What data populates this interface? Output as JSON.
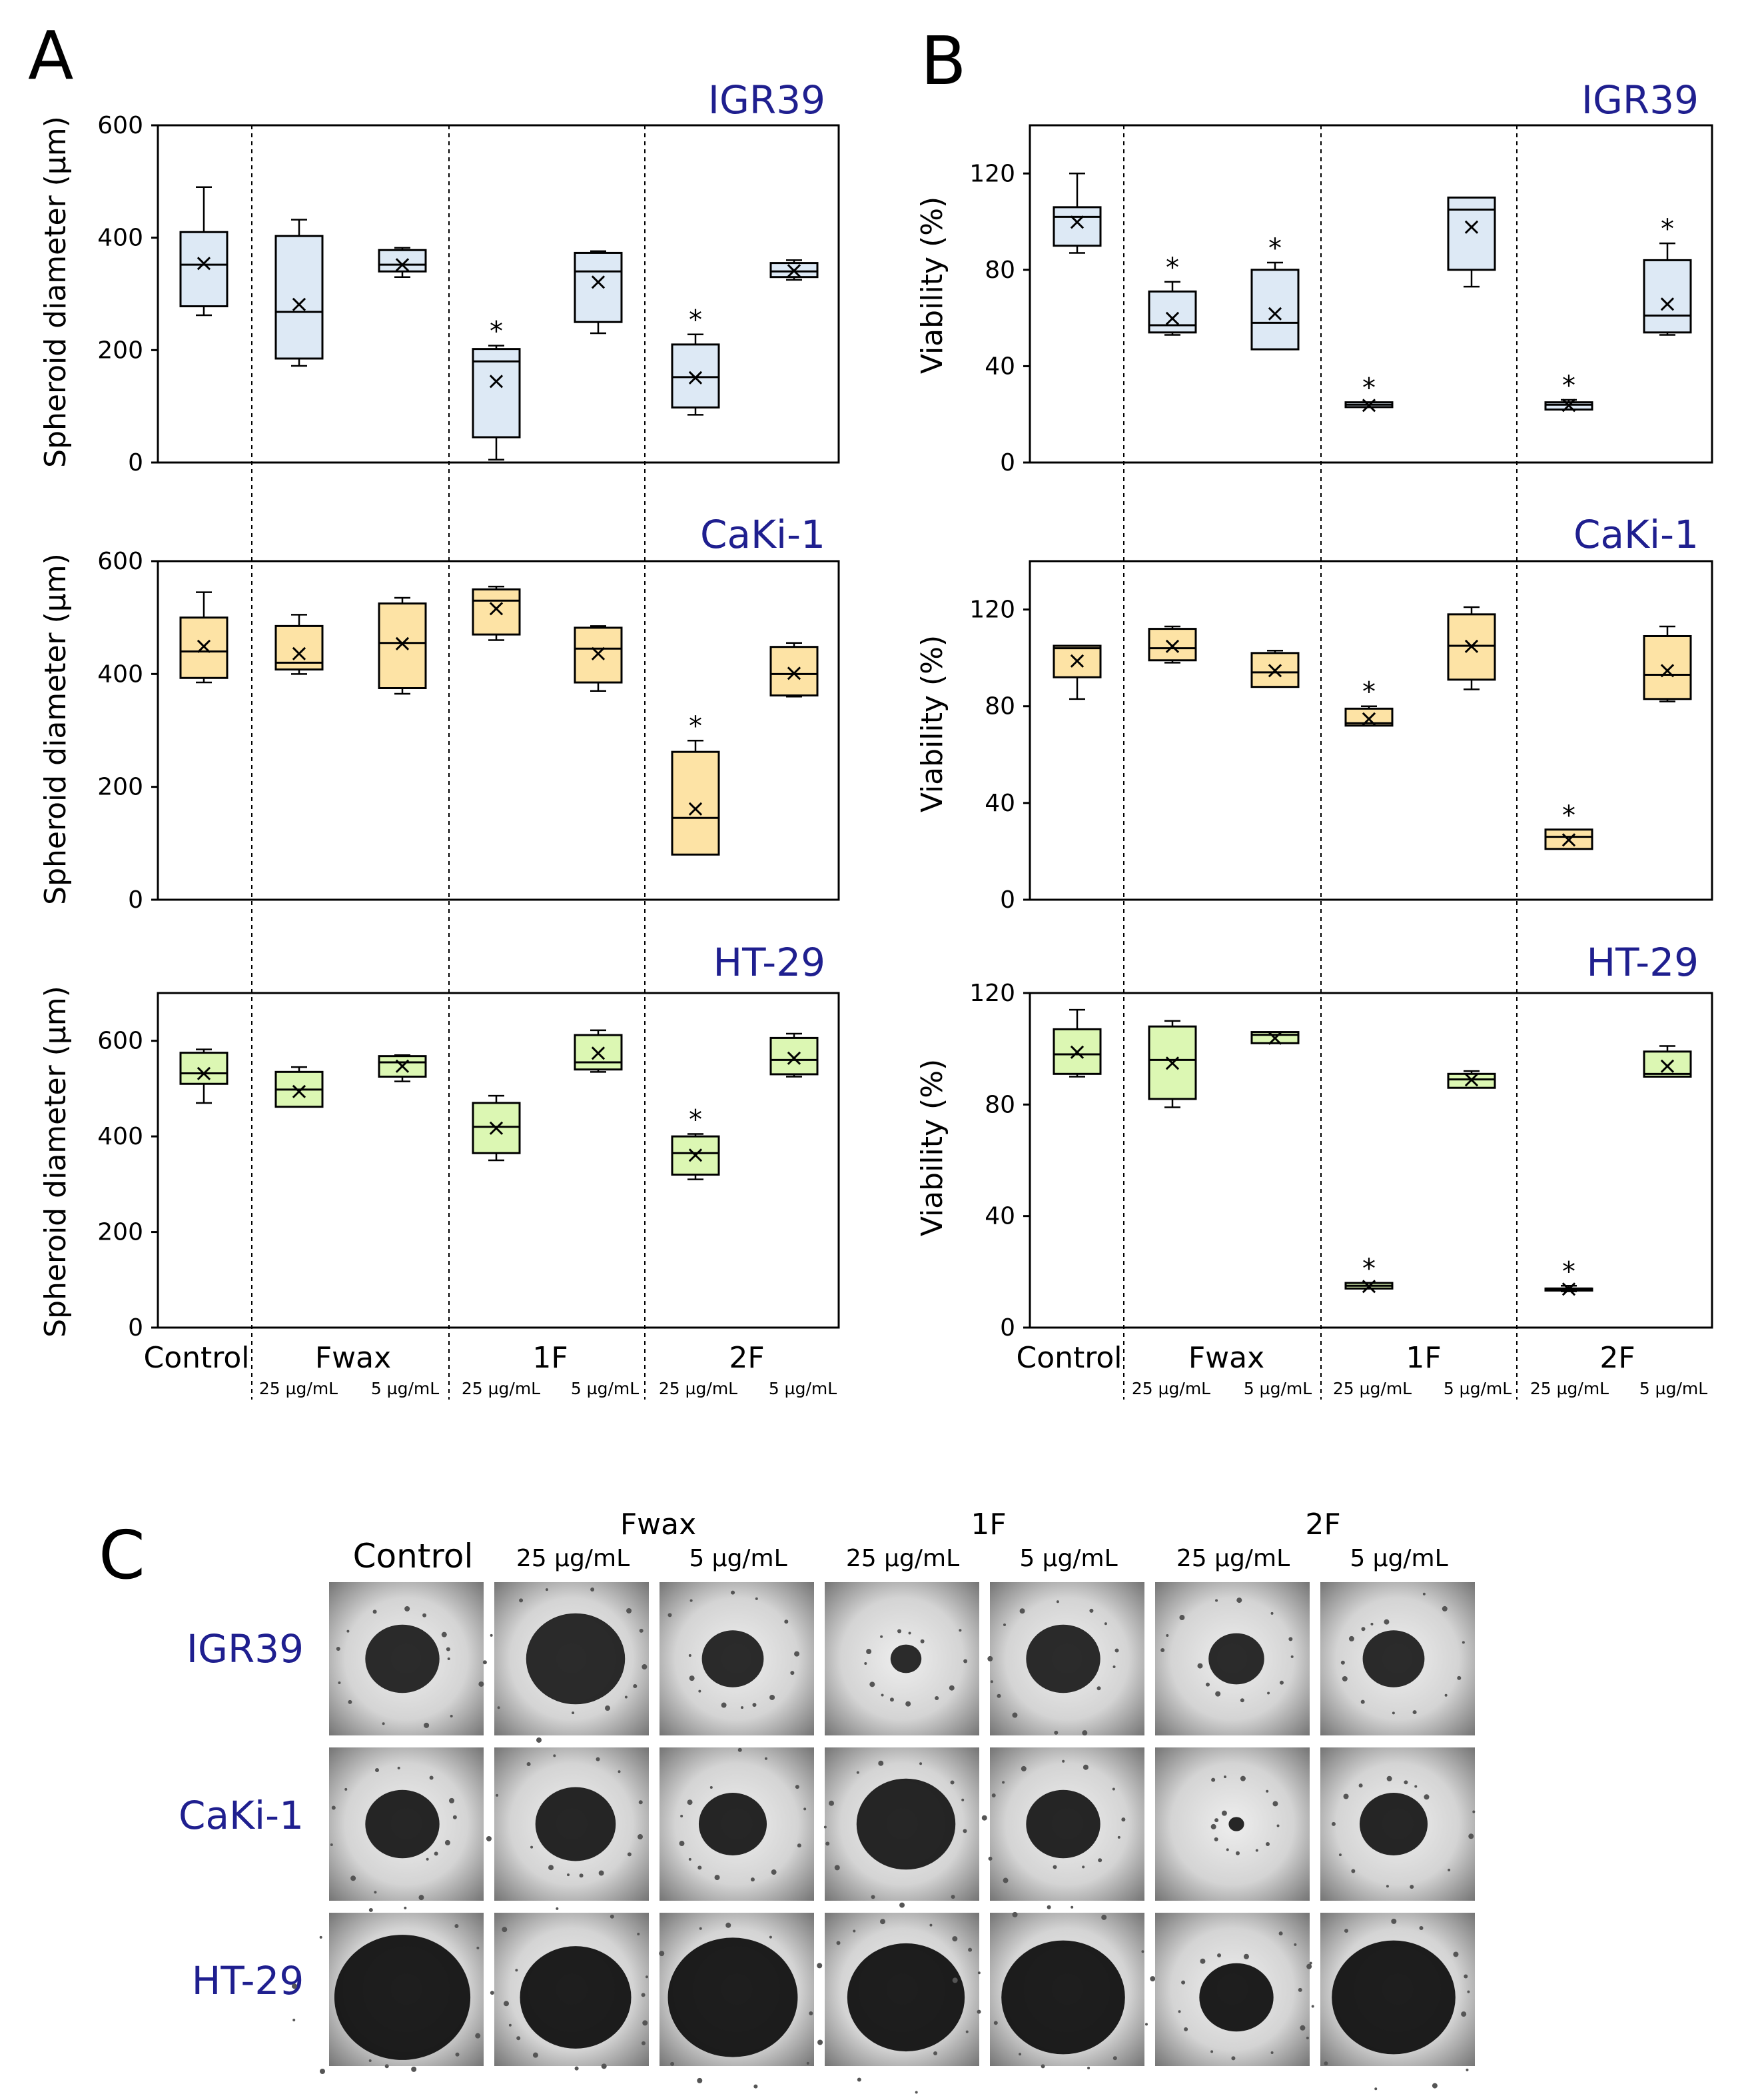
{
  "panels": {
    "A": {
      "letter": "A",
      "ylabel": "Spheroid diameter (µm)",
      "cells": [
        {
          "title": "IGR39",
          "fill": "#dde9f5",
          "ylim": [
            0,
            600
          ],
          "yticks": [
            "0",
            "200",
            "400",
            "600"
          ],
          "ytick_values": [
            0,
            200,
            400,
            600
          ],
          "boxes": [
            {
              "min": 262,
              "q1": 278,
              "median": 352,
              "q3": 410,
              "max": 490,
              "mean": 355,
              "sig": false
            },
            {
              "min": 172,
              "q1": 185,
              "median": 268,
              "q3": 403,
              "max": 432,
              "mean": 282,
              "sig": false
            },
            {
              "min": 330,
              "q1": 340,
              "median": 352,
              "q3": 378,
              "max": 382,
              "mean": 353,
              "sig": false
            },
            {
              "min": 5,
              "q1": 45,
              "median": 180,
              "q3": 202,
              "max": 208,
              "mean": 145,
              "sig": true
            },
            {
              "min": 230,
              "q1": 250,
              "median": 340,
              "q3": 373,
              "max": 376,
              "mean": 322,
              "sig": false
            },
            {
              "min": 85,
              "q1": 98,
              "median": 152,
              "q3": 210,
              "max": 228,
              "mean": 152,
              "sig": true
            },
            {
              "min": 325,
              "q1": 330,
              "median": 340,
              "q3": 355,
              "max": 360,
              "mean": 342,
              "sig": false
            }
          ]
        },
        {
          "title": "CaKi-1",
          "fill": "#fde3a5",
          "ylim": [
            0,
            600
          ],
          "yticks": [
            "0",
            "200",
            "400",
            "600"
          ],
          "ytick_values": [
            0,
            200,
            400,
            600
          ],
          "boxes": [
            {
              "min": 385,
              "q1": 393,
              "median": 440,
              "q3": 500,
              "max": 545,
              "mean": 450,
              "sig": false
            },
            {
              "min": 400,
              "q1": 408,
              "median": 420,
              "q3": 485,
              "max": 505,
              "mean": 437,
              "sig": false
            },
            {
              "min": 365,
              "q1": 375,
              "median": 455,
              "q3": 525,
              "max": 535,
              "mean": 455,
              "sig": false
            },
            {
              "min": 460,
              "q1": 470,
              "median": 530,
              "q3": 550,
              "max": 555,
              "mean": 517,
              "sig": false
            },
            {
              "min": 370,
              "q1": 385,
              "median": 445,
              "q3": 482,
              "max": 485,
              "mean": 437,
              "sig": false
            },
            {
              "min": 80,
              "q1": 80,
              "median": 145,
              "q3": 262,
              "max": 282,
              "mean": 162,
              "sig": true
            },
            {
              "min": 360,
              "q1": 362,
              "median": 400,
              "q3": 448,
              "max": 455,
              "mean": 402,
              "sig": false
            }
          ]
        },
        {
          "title": "HT-29",
          "fill": "#dcf7b3",
          "ylim": [
            0,
            700
          ],
          "yticks": [
            "0",
            "200",
            "400",
            "600"
          ],
          "ytick_values": [
            0,
            200,
            400,
            600
          ],
          "boxes": [
            {
              "min": 470,
              "q1": 510,
              "median": 532,
              "q3": 575,
              "max": 582,
              "mean": 533,
              "sig": false
            },
            {
              "min": 462,
              "q1": 462,
              "median": 498,
              "q3": 535,
              "max": 545,
              "mean": 495,
              "sig": false
            },
            {
              "min": 515,
              "q1": 525,
              "median": 555,
              "q3": 568,
              "max": 570,
              "mean": 548,
              "sig": false
            },
            {
              "min": 350,
              "q1": 365,
              "median": 420,
              "q3": 470,
              "max": 485,
              "mean": 418,
              "sig": false
            },
            {
              "min": 535,
              "q1": 540,
              "median": 555,
              "q3": 612,
              "max": 622,
              "mean": 575,
              "sig": false
            },
            {
              "min": 310,
              "q1": 320,
              "median": 365,
              "q3": 400,
              "max": 405,
              "mean": 362,
              "sig": true
            },
            {
              "min": 525,
              "q1": 530,
              "median": 560,
              "q3": 606,
              "max": 615,
              "mean": 565,
              "sig": false
            }
          ]
        }
      ]
    },
    "B": {
      "letter": "B",
      "ylabel": "Viability (%)",
      "cells": [
        {
          "title": "IGR39",
          "fill": "#dde9f5",
          "ylim": [
            0,
            140
          ],
          "yticks": [
            "0",
            "40",
            "80",
            "120"
          ],
          "ytick_values": [
            0,
            40,
            80,
            120
          ],
          "boxes": [
            {
              "min": 87,
              "q1": 90,
              "median": 102,
              "q3": 106,
              "max": 120,
              "mean": 100,
              "sig": false
            },
            {
              "min": 53,
              "q1": 54,
              "median": 57,
              "q3": 71,
              "max": 75,
              "mean": 60,
              "sig": true
            },
            {
              "min": 47,
              "q1": 47,
              "median": 58,
              "q3": 80,
              "max": 83,
              "mean": 62,
              "sig": true
            },
            {
              "min": 23,
              "q1": 23,
              "median": 24,
              "q3": 25,
              "max": 25,
              "mean": 24,
              "sig": true
            },
            {
              "min": 73,
              "q1": 80,
              "median": 105,
              "q3": 110,
              "max": 110,
              "mean": 98,
              "sig": false
            },
            {
              "min": 22,
              "q1": 22,
              "median": 24,
              "q3": 25,
              "max": 26,
              "mean": 24,
              "sig": true
            },
            {
              "min": 53,
              "q1": 54,
              "median": 61,
              "q3": 84,
              "max": 91,
              "mean": 66,
              "sig": true
            }
          ]
        },
        {
          "title": "CaKi-1",
          "fill": "#fde3a5",
          "ylim": [
            0,
            140
          ],
          "yticks": [
            "0",
            "40",
            "80",
            "120"
          ],
          "ytick_values": [
            0,
            40,
            80,
            120
          ],
          "boxes": [
            {
              "min": 83,
              "q1": 92,
              "median": 104,
              "q3": 105,
              "max": 105,
              "mean": 99,
              "sig": false
            },
            {
              "min": 98,
              "q1": 99,
              "median": 104,
              "q3": 112,
              "max": 113,
              "mean": 105,
              "sig": false
            },
            {
              "min": 88,
              "q1": 88,
              "median": 94,
              "q3": 102,
              "max": 103,
              "mean": 95,
              "sig": false
            },
            {
              "min": 72,
              "q1": 72,
              "median": 73,
              "q3": 79,
              "max": 80,
              "mean": 75,
              "sig": true
            },
            {
              "min": 87,
              "q1": 91,
              "median": 105,
              "q3": 118,
              "max": 121,
              "mean": 105,
              "sig": false
            },
            {
              "min": 21,
              "q1": 21,
              "median": 26,
              "q3": 29,
              "max": 29,
              "mean": 25,
              "sig": true
            },
            {
              "min": 82,
              "q1": 83,
              "median": 93,
              "q3": 109,
              "max": 113,
              "mean": 95,
              "sig": false
            }
          ]
        },
        {
          "title": "HT-29",
          "fill": "#dcf7b3",
          "ylim": [
            0,
            120
          ],
          "yticks": [
            "0",
            "40",
            "80",
            "120"
          ],
          "ytick_values": [
            0,
            40,
            80,
            120
          ],
          "boxes": [
            {
              "min": 90,
              "q1": 91,
              "median": 98,
              "q3": 107,
              "max": 114,
              "mean": 99,
              "sig": false
            },
            {
              "min": 79,
              "q1": 82,
              "median": 96,
              "q3": 108,
              "max": 110,
              "mean": 95,
              "sig": false
            },
            {
              "min": 102,
              "q1": 102,
              "median": 105,
              "q3": 106,
              "max": 106,
              "mean": 104,
              "sig": false
            },
            {
              "min": 14,
              "q1": 14,
              "median": 15,
              "q3": 16,
              "max": 16,
              "mean": 15,
              "sig": true
            },
            {
              "min": 86,
              "q1": 86,
              "median": 89,
              "q3": 91,
              "max": 92,
              "mean": 89,
              "sig": false
            },
            {
              "min": 13,
              "q1": 14,
              "median": 14,
              "q3": 14,
              "max": 15,
              "mean": 14,
              "sig": true
            },
            {
              "min": 90,
              "q1": 90,
              "median": 91,
              "q3": 99,
              "max": 101,
              "mean": 94,
              "sig": false
            }
          ]
        }
      ]
    },
    "C": {
      "letter": "C",
      "control": "Control",
      "groups": [
        "Fwax",
        "1F",
        "2F"
      ],
      "concentrations": [
        "25 µg/mL",
        "5 µg/mL",
        "25 µg/mL",
        "5 µg/mL",
        "25 µg/mL",
        "5 µg/mL"
      ],
      "rows": [
        "IGR39",
        "CaKi-1",
        "HT-29"
      ],
      "spheroid_size_percent": [
        [
          24,
          32,
          20,
          10,
          24,
          18,
          20
        ],
        [
          24,
          26,
          22,
          32,
          24,
          5,
          22
        ],
        [
          44,
          36,
          42,
          38,
          40,
          24,
          40
        ]
      ]
    }
  },
  "x_axis": {
    "control": "Control",
    "groups": [
      "Fwax",
      "1F",
      "2F"
    ],
    "concentrations": [
      "25 µg/mL",
      "5 µg/mL",
      "25 µg/mL",
      "5 µg/mL",
      "25 µg/mL",
      "5 µg/mL"
    ]
  },
  "significance_marker": "*",
  "mean_marker": "×",
  "chart_data": [
    {
      "type": "box",
      "title": "IGR39",
      "ylabel": "Spheroid diameter (µm)",
      "categories": [
        "Control",
        "Fwax 25 µg/mL",
        "Fwax 5 µg/mL",
        "1F 25 µg/mL",
        "1F 5 µg/mL",
        "2F 25 µg/mL",
        "2F 5 µg/mL"
      ],
      "median": [
        352,
        268,
        352,
        180,
        340,
        152,
        340
      ],
      "mean": [
        355,
        282,
        353,
        145,
        322,
        152,
        342
      ],
      "ylim": [
        0,
        600
      ]
    },
    {
      "type": "box",
      "title": "CaKi-1",
      "ylabel": "Spheroid diameter (µm)",
      "categories": [
        "Control",
        "Fwax 25 µg/mL",
        "Fwax 5 µg/mL",
        "1F 25 µg/mL",
        "1F 5 µg/mL",
        "2F 25 µg/mL",
        "2F 5 µg/mL"
      ],
      "median": [
        440,
        420,
        455,
        530,
        445,
        145,
        400
      ],
      "mean": [
        450,
        437,
        455,
        517,
        437,
        162,
        402
      ],
      "ylim": [
        0,
        600
      ]
    },
    {
      "type": "box",
      "title": "HT-29",
      "ylabel": "Spheroid diameter (µm)",
      "categories": [
        "Control",
        "Fwax 25 µg/mL",
        "Fwax 5 µg/mL",
        "1F 25 µg/mL",
        "1F 5 µg/mL",
        "2F 25 µg/mL",
        "2F 5 µg/mL"
      ],
      "median": [
        532,
        498,
        555,
        420,
        555,
        365,
        560
      ],
      "mean": [
        533,
        495,
        548,
        418,
        575,
        362,
        565
      ],
      "ylim": [
        0,
        700
      ]
    },
    {
      "type": "box",
      "title": "IGR39",
      "ylabel": "Viability (%)",
      "categories": [
        "Control",
        "Fwax 25 µg/mL",
        "Fwax 5 µg/mL",
        "1F 25 µg/mL",
        "1F 5 µg/mL",
        "2F 25 µg/mL",
        "2F 5 µg/mL"
      ],
      "median": [
        102,
        57,
        58,
        24,
        105,
        24,
        61
      ],
      "mean": [
        100,
        60,
        62,
        24,
        98,
        24,
        66
      ],
      "ylim": [
        0,
        140
      ]
    },
    {
      "type": "box",
      "title": "CaKi-1",
      "ylabel": "Viability (%)",
      "categories": [
        "Control",
        "Fwax 25 µg/mL",
        "Fwax 5 µg/mL",
        "1F 25 µg/mL",
        "1F 5 µg/mL",
        "2F 25 µg/mL",
        "2F 5 µg/mL"
      ],
      "median": [
        104,
        104,
        94,
        73,
        105,
        26,
        93
      ],
      "mean": [
        99,
        105,
        95,
        75,
        105,
        25,
        95
      ],
      "ylim": [
        0,
        140
      ]
    },
    {
      "type": "box",
      "title": "HT-29",
      "ylabel": "Viability (%)",
      "categories": [
        "Control",
        "Fwax 25 µg/mL",
        "Fwax 5 µg/mL",
        "1F 25 µg/mL",
        "1F 5 µg/mL",
        "2F 25 µg/mL",
        "2F 5 µg/mL"
      ],
      "median": [
        98,
        96,
        105,
        15,
        89,
        14,
        91
      ],
      "mean": [
        99,
        95,
        104,
        15,
        89,
        14,
        94
      ],
      "ylim": [
        0,
        120
      ]
    }
  ]
}
